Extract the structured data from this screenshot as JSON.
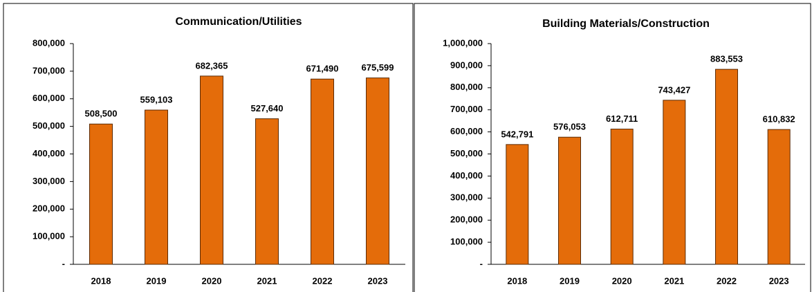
{
  "chart_data": [
    {
      "type": "bar",
      "title": "Communication/Utilities",
      "categories": [
        "2018",
        "2019",
        "2020",
        "2021",
        "2022",
        "2023"
      ],
      "values": [
        508500,
        559103,
        682365,
        527640,
        671490,
        675599
      ],
      "value_labels": [
        "508,500",
        "559,103",
        "682,365",
        "527,640",
        "671,490",
        "675,599"
      ],
      "color": "#e46c0a",
      "ylim": [
        0,
        800000
      ],
      "yticks": [
        {
          "value": 0,
          "label": "-"
        },
        {
          "value": 100000,
          "label": "100,000"
        },
        {
          "value": 200000,
          "label": "200,000"
        },
        {
          "value": 300000,
          "label": "300,000"
        },
        {
          "value": 400000,
          "label": "400,000"
        },
        {
          "value": 500000,
          "label": "500,000"
        },
        {
          "value": 600000,
          "label": "600,000"
        },
        {
          "value": 700000,
          "label": "700,000"
        },
        {
          "value": 800000,
          "label": "800,000"
        }
      ]
    },
    {
      "type": "bar",
      "title": "Building Materials/Construction",
      "categories": [
        "2018",
        "2019",
        "2020",
        "2021",
        "2022",
        "2023"
      ],
      "values": [
        542791,
        576053,
        612711,
        743427,
        883553,
        610832
      ],
      "value_labels": [
        "542,791",
        "576,053",
        "612,711",
        "743,427",
        "883,553",
        "610,832"
      ],
      "color": "#e46c0a",
      "ylim": [
        0,
        1000000
      ],
      "yticks": [
        {
          "value": 0,
          "label": "-"
        },
        {
          "value": 100000,
          "label": "100,000"
        },
        {
          "value": 200000,
          "label": "200,000"
        },
        {
          "value": 300000,
          "label": "300,000"
        },
        {
          "value": 400000,
          "label": "400,000"
        },
        {
          "value": 500000,
          "label": "500,000"
        },
        {
          "value": 600000,
          "label": "600,000"
        },
        {
          "value": 700000,
          "label": "700,000"
        },
        {
          "value": 800000,
          "label": "800,000"
        },
        {
          "value": 900000,
          "label": "900,000"
        },
        {
          "value": 1000000,
          "label": "1,000,000"
        }
      ]
    }
  ]
}
